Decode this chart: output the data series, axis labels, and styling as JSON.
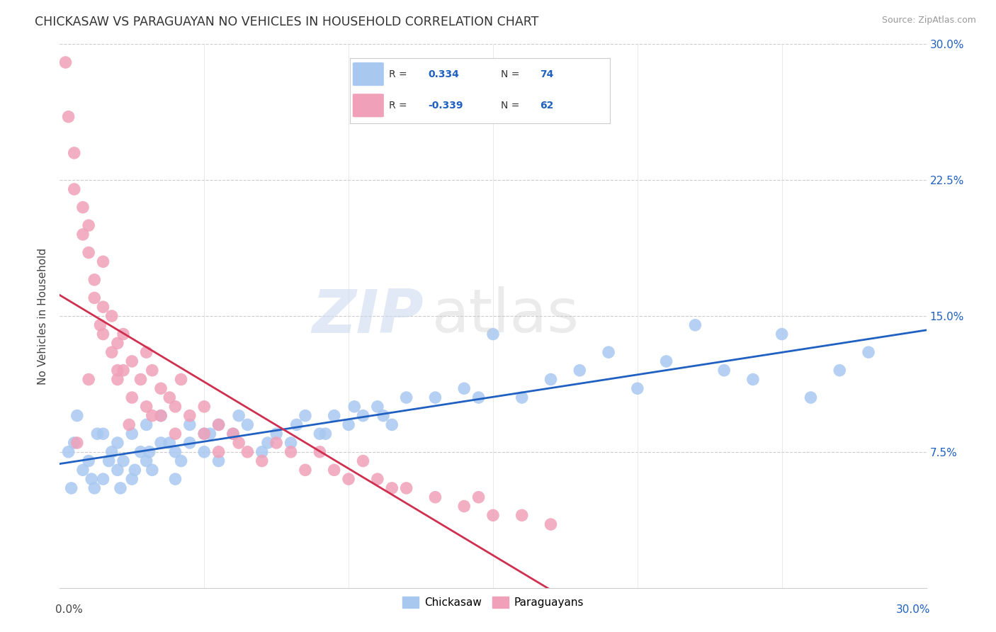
{
  "title": "CHICKASAW VS PARAGUAYAN NO VEHICLES IN HOUSEHOLD CORRELATION CHART",
  "source": "Source: ZipAtlas.com",
  "ylabel": "No Vehicles in Household",
  "legend_chickasaw": "Chickasaw",
  "legend_paraguayans": "Paraguayans",
  "r_chickasaw": "0.334",
  "n_chickasaw": "74",
  "r_paraguayan": "-0.339",
  "n_paraguayan": "62",
  "xlim": [
    0.0,
    30.0
  ],
  "ylim": [
    0.0,
    30.0
  ],
  "color_chickasaw": "#a8c8f0",
  "color_paraguayan": "#f0a0b8",
  "color_line_chickasaw": "#2060c0",
  "color_line_paraguayan": "#d03050",
  "background_color": "#ffffff",
  "chickasaw_x": [
    0.3,
    0.5,
    0.8,
    1.0,
    1.2,
    1.5,
    1.5,
    1.8,
    2.0,
    2.0,
    2.2,
    2.5,
    2.5,
    2.8,
    3.0,
    3.0,
    3.2,
    3.5,
    3.5,
    4.0,
    4.0,
    4.5,
    4.5,
    5.0,
    5.0,
    5.5,
    5.5,
    6.0,
    6.5,
    7.0,
    7.5,
    8.0,
    8.5,
    9.0,
    9.5,
    10.0,
    10.5,
    11.0,
    11.5,
    12.0,
    13.0,
    14.0,
    14.5,
    15.0,
    16.0,
    17.0,
    18.0,
    19.0,
    20.0,
    21.0,
    22.0,
    23.0,
    24.0,
    25.0,
    26.0,
    27.0,
    28.0,
    0.4,
    0.6,
    1.1,
    1.3,
    1.7,
    2.1,
    2.6,
    3.1,
    3.8,
    4.2,
    5.2,
    6.2,
    7.2,
    8.2,
    9.2,
    10.2,
    11.2
  ],
  "chickasaw_y": [
    7.5,
    8.0,
    6.5,
    7.0,
    5.5,
    8.5,
    6.0,
    7.5,
    6.5,
    8.0,
    7.0,
    8.5,
    6.0,
    7.5,
    7.0,
    9.0,
    6.5,
    8.0,
    9.5,
    7.5,
    6.0,
    8.0,
    9.0,
    7.5,
    8.5,
    7.0,
    9.0,
    8.5,
    9.0,
    7.5,
    8.5,
    8.0,
    9.5,
    8.5,
    9.5,
    9.0,
    9.5,
    10.0,
    9.0,
    10.5,
    10.5,
    11.0,
    10.5,
    14.0,
    10.5,
    11.5,
    12.0,
    13.0,
    11.0,
    12.5,
    14.5,
    12.0,
    11.5,
    14.0,
    10.5,
    12.0,
    13.0,
    5.5,
    9.5,
    6.0,
    8.5,
    7.0,
    5.5,
    6.5,
    7.5,
    8.0,
    7.0,
    8.5,
    9.5,
    8.0,
    9.0,
    8.5,
    10.0,
    9.5
  ],
  "paraguayan_x": [
    0.2,
    0.3,
    0.5,
    0.5,
    0.8,
    0.8,
    1.0,
    1.0,
    1.2,
    1.2,
    1.5,
    1.5,
    1.5,
    1.8,
    1.8,
    2.0,
    2.0,
    2.2,
    2.2,
    2.5,
    2.5,
    2.8,
    3.0,
    3.0,
    3.2,
    3.5,
    3.5,
    3.8,
    4.0,
    4.0,
    4.5,
    5.0,
    5.0,
    5.5,
    5.5,
    6.0,
    6.5,
    7.0,
    7.5,
    8.0,
    8.5,
    9.0,
    9.5,
    10.0,
    10.5,
    11.0,
    11.5,
    12.0,
    13.0,
    14.0,
    14.5,
    15.0,
    16.0,
    17.0,
    0.6,
    1.0,
    1.4,
    2.0,
    2.4,
    3.2,
    4.2,
    6.2
  ],
  "paraguayan_y": [
    29.0,
    26.0,
    24.0,
    22.0,
    21.0,
    19.5,
    20.0,
    18.5,
    17.0,
    16.0,
    18.0,
    15.5,
    14.0,
    15.0,
    13.0,
    13.5,
    11.5,
    14.0,
    12.0,
    12.5,
    10.5,
    11.5,
    10.0,
    13.0,
    12.0,
    11.0,
    9.5,
    10.5,
    10.0,
    8.5,
    9.5,
    8.5,
    10.0,
    9.0,
    7.5,
    8.5,
    7.5,
    7.0,
    8.0,
    7.5,
    6.5,
    7.5,
    6.5,
    6.0,
    7.0,
    6.0,
    5.5,
    5.5,
    5.0,
    4.5,
    5.0,
    4.0,
    4.0,
    3.5,
    8.0,
    11.5,
    14.5,
    12.0,
    9.0,
    9.5,
    11.5,
    8.0
  ]
}
